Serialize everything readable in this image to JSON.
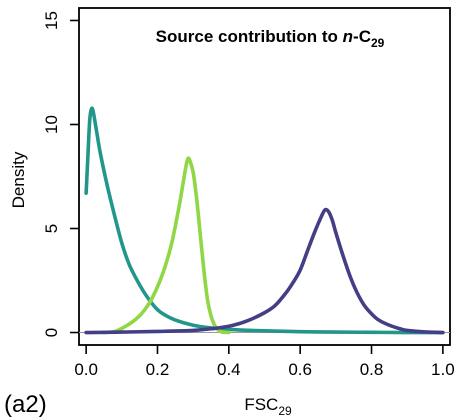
{
  "chart_data": {
    "type": "line",
    "title_main": "Source contribution to ",
    "title_italic": "n",
    "title_compound": "-C",
    "title_sub": "29",
    "xlabel_main": "FSC",
    "xlabel_sub": "29",
    "ylabel": "Density",
    "panel_label": "(a2)",
    "xlim": [
      -0.02,
      1.02
    ],
    "ylim": [
      -0.6,
      15.6
    ],
    "x_ticks": [
      0.0,
      0.2,
      0.4,
      0.6,
      0.8,
      1.0
    ],
    "x_tick_labels": [
      "0.0",
      "0.2",
      "0.4",
      "0.6",
      "0.8",
      "1.0"
    ],
    "y_ticks": [
      0,
      5,
      10,
      15
    ],
    "y_tick_labels": [
      "0",
      "5",
      "10",
      "15"
    ],
    "grid": false,
    "legend": false,
    "series": [
      {
        "color": "#23968b",
        "points": [
          [
            0.0,
            6.7
          ],
          [
            0.005,
            8.5
          ],
          [
            0.01,
            10.2
          ],
          [
            0.015,
            10.75
          ],
          [
            0.02,
            10.6
          ],
          [
            0.03,
            9.6
          ],
          [
            0.04,
            8.6
          ],
          [
            0.06,
            7.0
          ],
          [
            0.08,
            5.6
          ],
          [
            0.1,
            4.3
          ],
          [
            0.12,
            3.3
          ],
          [
            0.14,
            2.6
          ],
          [
            0.16,
            2.0
          ],
          [
            0.18,
            1.5
          ],
          [
            0.2,
            1.1
          ],
          [
            0.22,
            0.85
          ],
          [
            0.25,
            0.6
          ],
          [
            0.3,
            0.35
          ],
          [
            0.35,
            0.22
          ],
          [
            0.4,
            0.15
          ],
          [
            0.5,
            0.08
          ],
          [
            0.6,
            0.04
          ],
          [
            0.7,
            0.02
          ],
          [
            0.8,
            0.01
          ],
          [
            0.9,
            0.0
          ],
          [
            1.0,
            0.0
          ]
        ]
      },
      {
        "color": "#8fd744",
        "points": [
          [
            0.05,
            0.0
          ],
          [
            0.08,
            0.05
          ],
          [
            0.1,
            0.2
          ],
          [
            0.12,
            0.4
          ],
          [
            0.14,
            0.65
          ],
          [
            0.16,
            1.0
          ],
          [
            0.18,
            1.5
          ],
          [
            0.2,
            2.2
          ],
          [
            0.22,
            3.1
          ],
          [
            0.24,
            4.3
          ],
          [
            0.26,
            6.0
          ],
          [
            0.27,
            7.0
          ],
          [
            0.28,
            8.0
          ],
          [
            0.285,
            8.35
          ],
          [
            0.29,
            8.3
          ],
          [
            0.3,
            7.7
          ],
          [
            0.31,
            6.4
          ],
          [
            0.32,
            4.7
          ],
          [
            0.33,
            3.0
          ],
          [
            0.34,
            1.6
          ],
          [
            0.35,
            0.8
          ],
          [
            0.36,
            0.35
          ],
          [
            0.37,
            0.12
          ],
          [
            0.38,
            0.03
          ],
          [
            0.4,
            0.0
          ]
        ]
      },
      {
        "color": "#433e85",
        "points": [
          [
            0.0,
            0.0
          ],
          [
            0.1,
            0.02
          ],
          [
            0.2,
            0.05
          ],
          [
            0.3,
            0.1
          ],
          [
            0.35,
            0.18
          ],
          [
            0.4,
            0.3
          ],
          [
            0.45,
            0.55
          ],
          [
            0.5,
            0.95
          ],
          [
            0.53,
            1.3
          ],
          [
            0.56,
            1.9
          ],
          [
            0.58,
            2.4
          ],
          [
            0.6,
            3.0
          ],
          [
            0.62,
            3.9
          ],
          [
            0.64,
            4.8
          ],
          [
            0.66,
            5.6
          ],
          [
            0.67,
            5.9
          ],
          [
            0.68,
            5.8
          ],
          [
            0.69,
            5.4
          ],
          [
            0.7,
            4.8
          ],
          [
            0.72,
            3.7
          ],
          [
            0.74,
            2.7
          ],
          [
            0.76,
            1.9
          ],
          [
            0.78,
            1.3
          ],
          [
            0.8,
            0.9
          ],
          [
            0.82,
            0.6
          ],
          [
            0.85,
            0.35
          ],
          [
            0.88,
            0.18
          ],
          [
            0.9,
            0.1
          ],
          [
            0.95,
            0.03
          ],
          [
            1.0,
            0.0
          ]
        ]
      }
    ]
  }
}
